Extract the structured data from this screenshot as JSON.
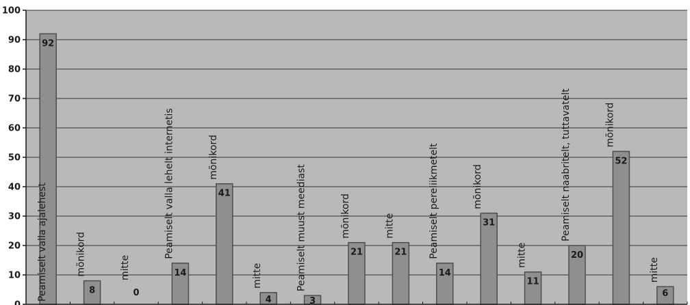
{
  "chart_data": {
    "type": "bar",
    "title": "",
    "xlabel": "",
    "ylabel": "",
    "ylim": [
      0,
      100
    ],
    "yticks": [
      "0",
      "10",
      "20",
      "30",
      "40",
      "50",
      "60",
      "70",
      "80",
      "90",
      "100"
    ],
    "grid": true,
    "legend": "none",
    "colors": {
      "plot_background": "#b9b9b9",
      "bar_fill": "#8f8f8f",
      "bar_stroke": "#4d4d4d",
      "grid_line": "#333333",
      "axis_line": "#1a1a1a"
    },
    "categories": [
      "Peamiselt valla ajalehest",
      "mõnikord",
      "mitte",
      "Peamiselt valla lehelt internetis",
      "mõnikord",
      "mitte",
      "Peamiselt muust meediast",
      "mõnikord",
      "mitte",
      "Peamiselt pereliikmetelt",
      "mõnikord",
      "mitte",
      "Peamiselt naabritelt, tuttavatelt",
      "mõnikord",
      "mitte"
    ],
    "values": [
      92,
      8,
      0,
      14,
      41,
      4,
      3,
      21,
      21,
      14,
      31,
      11,
      20,
      52,
      6
    ],
    "data_labels": [
      "92",
      "8",
      "0",
      "14",
      "41",
      "4",
      "3",
      "21",
      "21",
      "14",
      "31",
      "11",
      "20",
      "52",
      "6"
    ]
  }
}
